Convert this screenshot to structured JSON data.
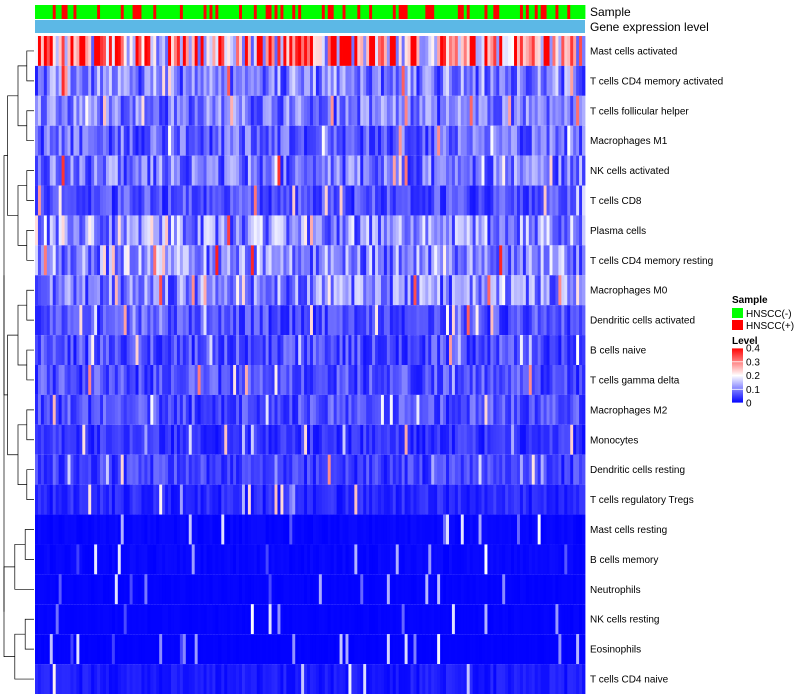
{
  "chart_data": {
    "type": "heatmap",
    "annotation_tracks": [
      "Sample",
      "Gene expression level"
    ],
    "rows": [
      "Mast cells activated",
      "T cells CD4 memory activated",
      "T cells follicular helper",
      "Macrophages M1",
      "NK cells activated",
      "T cells CD8",
      "Plasma cells",
      "T cells CD4 memory resting",
      "Macrophages M0",
      "Dendritic cells activated",
      "B cells naive",
      "T cells gamma delta",
      "Macrophages M2",
      "Monocytes",
      "Dendritic cells resting",
      "T cells regulatory  Tregs",
      "Mast cells resting",
      "B cells memory",
      "Neutrophils",
      "NK cells resting",
      "Eosinophils",
      "T cells CD4 naive"
    ],
    "row_mean_levels": [
      0.28,
      0.1,
      0.09,
      0.08,
      0.09,
      0.06,
      0.11,
      0.11,
      0.1,
      0.06,
      0.06,
      0.06,
      0.06,
      0.04,
      0.05,
      0.03,
      0.01,
      0.01,
      0.005,
      0.005,
      0.003,
      0.02
    ],
    "sample_count": 186,
    "sample_groups": [
      "HNSCC(-)",
      "HNSCC(+)"
    ],
    "sample_group_share": {
      "HNSCC(-)": 0.72,
      "HNSCC(+)": 0.28
    },
    "legend": {
      "sample_title": "Sample",
      "sample_entries": [
        {
          "label": "HNSCC(-)",
          "color": "#00ff00"
        },
        {
          "label": "HNSCC(+)",
          "color": "#ff0000"
        }
      ],
      "level_title": "Level",
      "level_ticks": [
        "0.4",
        "0.3",
        "0.2",
        "0.1",
        "0"
      ],
      "level_range": [
        0,
        0.4
      ]
    },
    "colors": {
      "low": "#0000ff",
      "mid": "#ffffff",
      "high": "#ff0000",
      "gene_expression_track": "#5cb8e6"
    }
  }
}
